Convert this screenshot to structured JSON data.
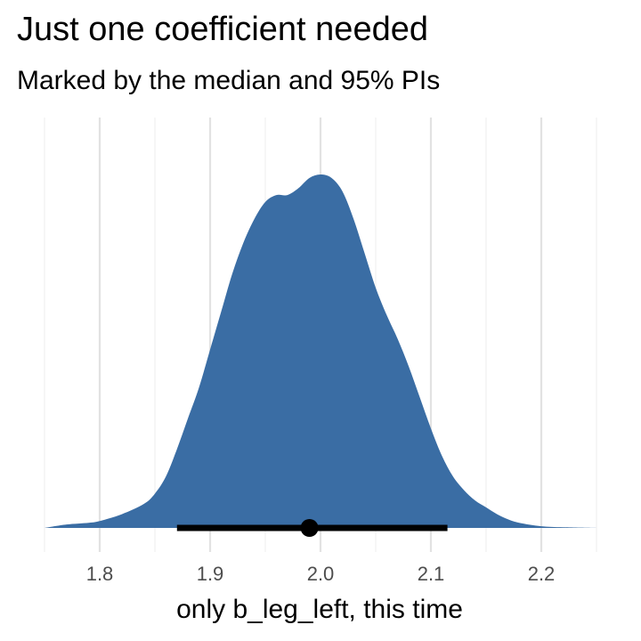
{
  "chart_data": {
    "type": "area",
    "title": "Just one coefficient needed",
    "subtitle": "Marked by the median and 95% PIs",
    "xlabel": "only b_leg_left, this time",
    "ylabel": "",
    "xlim": [
      1.75,
      2.25
    ],
    "x_ticks": [
      "1.8",
      "1.9",
      "2.0",
      "2.1",
      "2.2"
    ],
    "x_tick_values": [
      1.8,
      1.9,
      2.0,
      2.1,
      2.2
    ],
    "x_minor_grid": [
      1.75,
      1.85,
      1.95,
      2.05,
      2.15,
      2.25
    ],
    "grid": "vertical",
    "fill_color": "#3A6DA4",
    "interval_color": "#000000",
    "density": {
      "x": [
        1.75,
        1.77,
        1.79,
        1.8,
        1.82,
        1.84,
        1.85,
        1.86,
        1.87,
        1.88,
        1.89,
        1.9,
        1.91,
        1.92,
        1.93,
        1.94,
        1.95,
        1.96,
        1.97,
        1.98,
        1.99,
        2.0,
        2.01,
        2.02,
        2.03,
        2.04,
        2.05,
        2.06,
        2.07,
        2.08,
        2.09,
        2.1,
        2.11,
        2.12,
        2.13,
        2.14,
        2.15,
        2.16,
        2.17,
        2.18,
        2.2,
        2.22,
        2.25
      ],
      "y": [
        0.0,
        0.01,
        0.015,
        0.02,
        0.04,
        0.07,
        0.1,
        0.15,
        0.23,
        0.32,
        0.41,
        0.52,
        0.63,
        0.74,
        0.83,
        0.9,
        0.95,
        0.97,
        0.97,
        0.99,
        1.02,
        1.03,
        1.02,
        0.98,
        0.9,
        0.8,
        0.7,
        0.62,
        0.55,
        0.47,
        0.38,
        0.29,
        0.21,
        0.15,
        0.11,
        0.08,
        0.06,
        0.04,
        0.025,
        0.015,
        0.005,
        0.002,
        0.0
      ]
    },
    "median": 1.99,
    "interval": [
      1.87,
      2.115
    ]
  }
}
